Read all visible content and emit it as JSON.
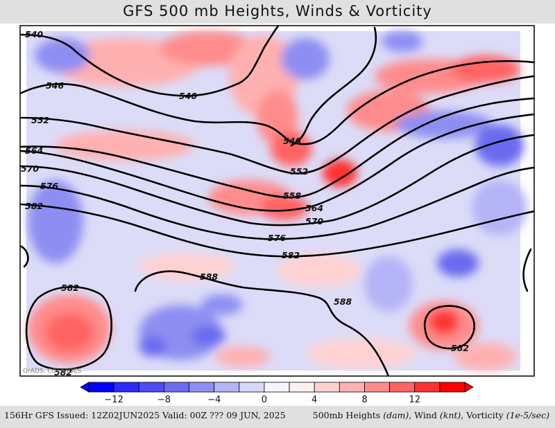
{
  "title": "GFS 500 mb Heights, Winds & Vorticity",
  "footer": {
    "left": "156Hr GFS Issued: 12Z02JUN2025 Valid: 00Z ??? 09 JUN, 2025",
    "right_prefix": "500mb Heights ",
    "right_heights_unit": "(dam)",
    "right_wind": ", Wind ",
    "right_wind_unit": "(knt)",
    "right_vort": ", Vorticity ",
    "right_vort_unit": "(1e-5/sec)"
  },
  "watermark": "GrADS: COLA/IGES",
  "colorbar": {
    "colors": [
      "#0000ff",
      "#2a2aff",
      "#4c4cf2",
      "#6b6bf0",
      "#8e8ef2",
      "#b4b4f7",
      "#d7d7fb",
      "#f5f5ff",
      "#fff0f0",
      "#ffd2d2",
      "#ffb0b0",
      "#ff8c8c",
      "#ff6464",
      "#ff3232",
      "#ff0000"
    ],
    "tick_labels": [
      "−12",
      "−8",
      "−4",
      "0",
      "4",
      "8",
      "12"
    ]
  },
  "contour_labels": {
    "540": "540",
    "546": "546",
    "552": "552",
    "558": "558",
    "564": "564",
    "570": "570",
    "576": "576",
    "582": "582",
    "588": "588"
  }
}
